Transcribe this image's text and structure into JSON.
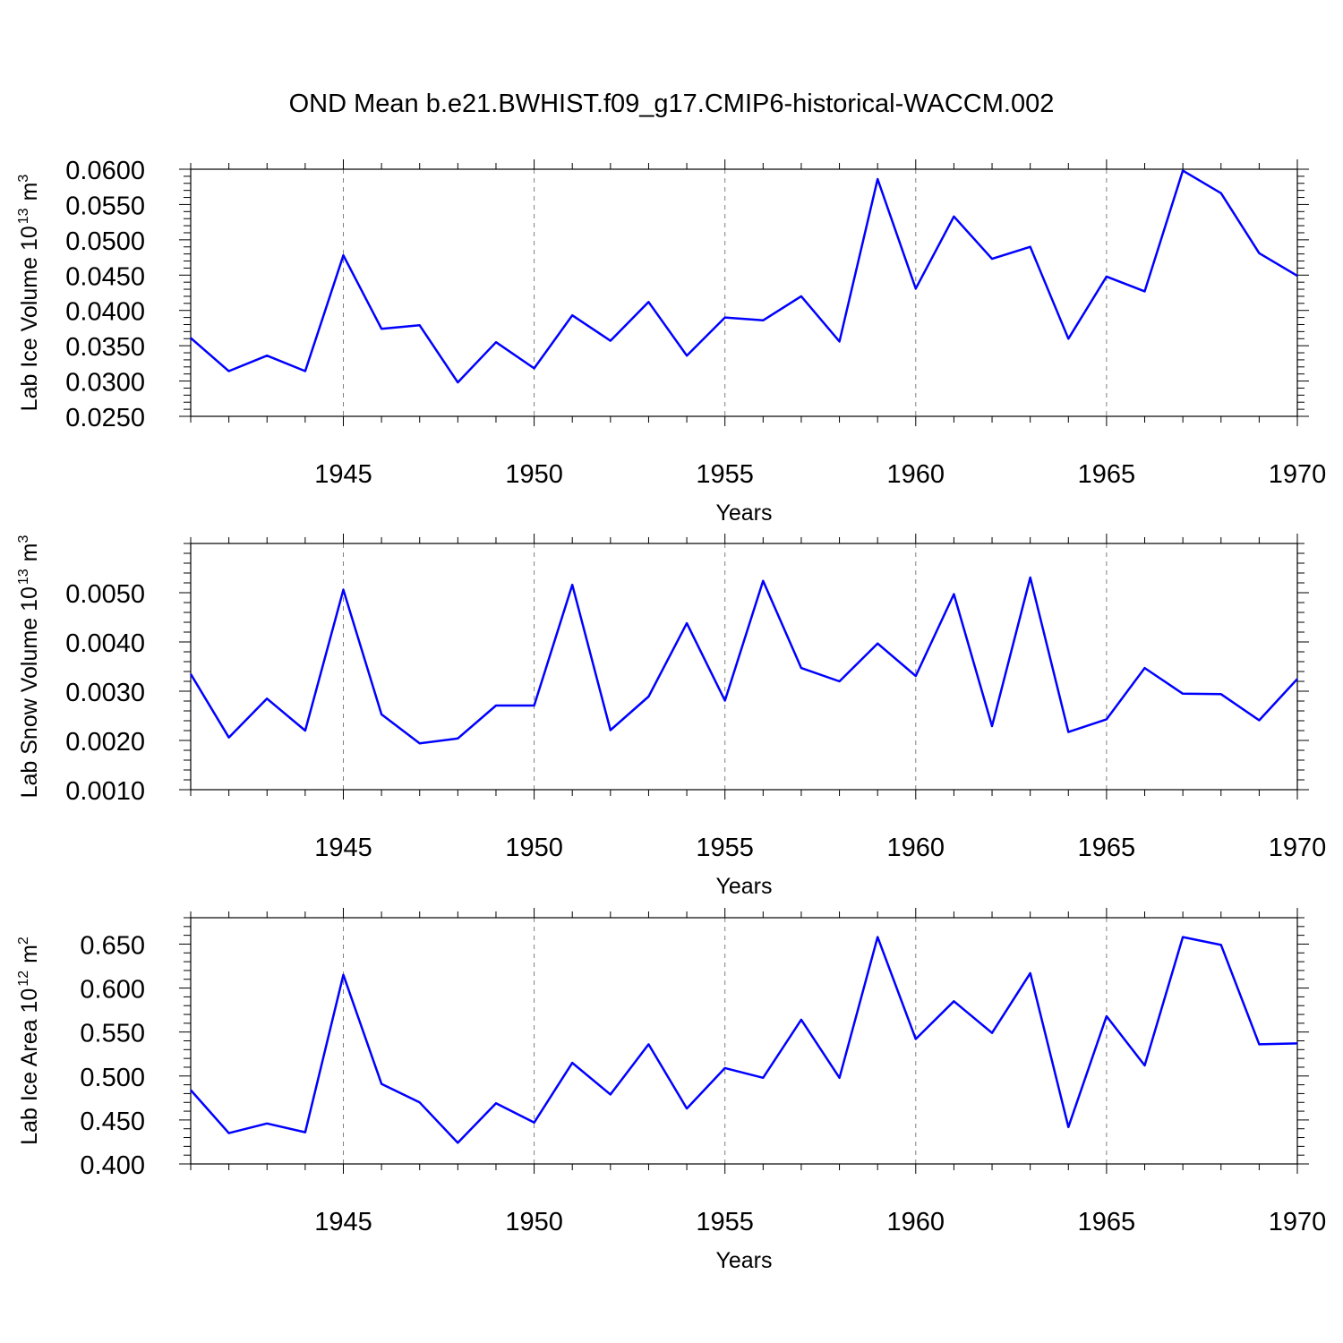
{
  "title": "OND Mean b.e21.BWHIST.f09_g17.CMIP6-historical-WACCM.002",
  "colors": {
    "line": "#0000ff",
    "axis": "#000000",
    "grid": "#808080"
  },
  "chart_data": [
    {
      "type": "line",
      "ylabel": "Lab Ice Volume 10",
      "ylabel_exp": "13",
      "ylabel_unit": "m",
      "ylabel_unit_exp": "3",
      "xlabel": "Years",
      "xlim": [
        1941,
        1970
      ],
      "ylim": [
        0.025,
        0.06
      ],
      "yticks": [
        0.025,
        0.03,
        0.035,
        0.04,
        0.045,
        0.05,
        0.055,
        0.06
      ],
      "ytick_labels": [
        "0.0250",
        "0.0300",
        "0.0350",
        "0.0400",
        "0.0450",
        "0.0500",
        "0.0550",
        "0.0600"
      ],
      "xticks": [
        1945,
        1950,
        1955,
        1960,
        1965,
        1970
      ],
      "xtick_labels": [
        "1945",
        "1950",
        "1955",
        "1960",
        "1965",
        "1970"
      ],
      "x": [
        1941,
        1942,
        1943,
        1944,
        1945,
        1946,
        1947,
        1948,
        1949,
        1950,
        1951,
        1952,
        1953,
        1954,
        1955,
        1956,
        1957,
        1958,
        1959,
        1960,
        1961,
        1962,
        1963,
        1964,
        1965,
        1966,
        1967,
        1968,
        1969,
        1970
      ],
      "values": [
        0.0361,
        0.0314,
        0.0336,
        0.0314,
        0.0478,
        0.0374,
        0.0379,
        0.0298,
        0.0355,
        0.0318,
        0.0393,
        0.0357,
        0.0412,
        0.0336,
        0.039,
        0.0386,
        0.042,
        0.0356,
        0.0586,
        0.0431,
        0.0533,
        0.0473,
        0.049,
        0.036,
        0.0448,
        0.0427,
        0.0598,
        0.0566,
        0.0481,
        0.0449
      ]
    },
    {
      "type": "line",
      "ylabel": "Lab Snow Volume 10",
      "ylabel_exp": "13",
      "ylabel_unit": "m",
      "ylabel_unit_exp": "3",
      "xlabel": "Years",
      "xlim": [
        1941,
        1970
      ],
      "ylim": [
        0.001,
        0.006
      ],
      "yticks": [
        0.001,
        0.002,
        0.003,
        0.004,
        0.005
      ],
      "ytick_labels": [
        "0.0010",
        "0.0020",
        "0.0030",
        "0.0040",
        "0.0050"
      ],
      "xticks": [
        1945,
        1950,
        1955,
        1960,
        1965,
        1970
      ],
      "xtick_labels": [
        "1945",
        "1950",
        "1955",
        "1960",
        "1965",
        "1970"
      ],
      "x": [
        1941,
        1942,
        1943,
        1944,
        1945,
        1946,
        1947,
        1948,
        1949,
        1950,
        1951,
        1952,
        1953,
        1954,
        1955,
        1956,
        1957,
        1958,
        1959,
        1960,
        1961,
        1962,
        1963,
        1964,
        1965,
        1966,
        1967,
        1968,
        1969,
        1970
      ],
      "values": [
        0.00335,
        0.00206,
        0.00285,
        0.0022,
        0.00506,
        0.00253,
        0.00194,
        0.00204,
        0.00271,
        0.00271,
        0.00516,
        0.00221,
        0.00289,
        0.00438,
        0.00281,
        0.00524,
        0.00347,
        0.0032,
        0.00397,
        0.00331,
        0.00497,
        0.00229,
        0.00531,
        0.00217,
        0.00243,
        0.00347,
        0.00295,
        0.00294,
        0.00241,
        0.00325
      ]
    },
    {
      "type": "line",
      "ylabel": "Lab Ice Area 10",
      "ylabel_exp": "12",
      "ylabel_unit": "m",
      "ylabel_unit_exp": "2",
      "xlabel": "Years",
      "xlim": [
        1941,
        1970
      ],
      "ylim": [
        0.4,
        0.68
      ],
      "yticks": [
        0.4,
        0.45,
        0.5,
        0.55,
        0.6,
        0.65
      ],
      "ytick_labels": [
        "0.400",
        "0.450",
        "0.500",
        "0.550",
        "0.600",
        "0.650"
      ],
      "xticks": [
        1945,
        1950,
        1955,
        1960,
        1965,
        1970
      ],
      "xtick_labels": [
        "1945",
        "1950",
        "1955",
        "1960",
        "1965",
        "1970"
      ],
      "x": [
        1941,
        1942,
        1943,
        1944,
        1945,
        1946,
        1947,
        1948,
        1949,
        1950,
        1951,
        1952,
        1953,
        1954,
        1955,
        1956,
        1957,
        1958,
        1959,
        1960,
        1961,
        1962,
        1963,
        1964,
        1965,
        1966,
        1967,
        1968,
        1969,
        1970
      ],
      "values": [
        0.484,
        0.435,
        0.446,
        0.436,
        0.615,
        0.491,
        0.47,
        0.424,
        0.469,
        0.447,
        0.515,
        0.479,
        0.536,
        0.463,
        0.509,
        0.498,
        0.564,
        0.498,
        0.658,
        0.542,
        0.585,
        0.549,
        0.617,
        0.442,
        0.568,
        0.512,
        0.658,
        0.649,
        0.536,
        0.537
      ]
    }
  ]
}
